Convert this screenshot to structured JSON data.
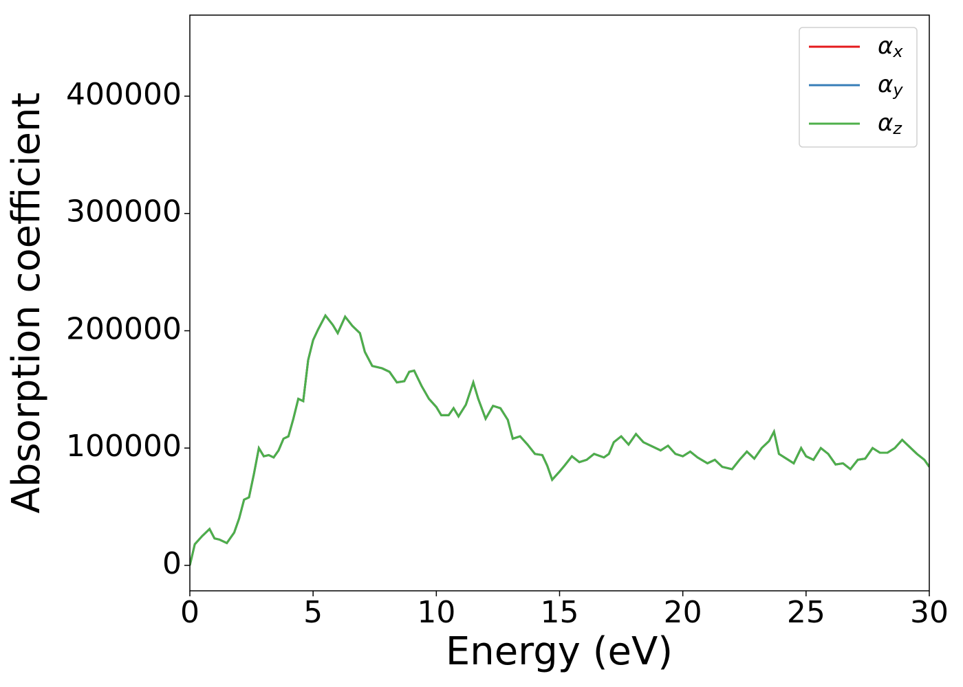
{
  "chart_data": {
    "type": "line",
    "xlabel": "Energy (eV)",
    "ylabel": "Absorption coefficient",
    "x": [
      0,
      0.2,
      0.5,
      0.8,
      1.0,
      1.2,
      1.5,
      1.8,
      2.0,
      2.2,
      2.4,
      2.6,
      2.8,
      3.0,
      3.2,
      3.4,
      3.6,
      3.8,
      4.0,
      4.2,
      4.4,
      4.6,
      4.8,
      5.0,
      5.2,
      5.5,
      5.8,
      6.0,
      6.3,
      6.6,
      6.9,
      7.1,
      7.4,
      7.8,
      8.1,
      8.4,
      8.7,
      8.9,
      9.1,
      9.4,
      9.7,
      10.0,
      10.2,
      10.5,
      10.7,
      10.9,
      11.2,
      11.5,
      11.7,
      12.0,
      12.3,
      12.6,
      12.9,
      13.1,
      13.4,
      13.7,
      14.0,
      14.3,
      14.5,
      14.7,
      15.0,
      15.2,
      15.5,
      15.8,
      16.1,
      16.4,
      16.8,
      17.0,
      17.2,
      17.5,
      17.8,
      18.1,
      18.4,
      18.8,
      19.1,
      19.4,
      19.7,
      20.0,
      20.3,
      20.6,
      21.0,
      21.3,
      21.6,
      22.0,
      22.3,
      22.6,
      22.9,
      23.2,
      23.5,
      23.7,
      23.9,
      24.2,
      24.5,
      24.8,
      25.0,
      25.3,
      25.6,
      25.9,
      26.2,
      26.5,
      26.8,
      27.1,
      27.4,
      27.7,
      28.0,
      28.3,
      28.6,
      28.9,
      29.2,
      29.5,
      29.8,
      30.0
    ],
    "series": [
      {
        "name": "αx",
        "color": "#e41a1c",
        "values": [
          0,
          18000,
          25000,
          31000,
          23000,
          22000,
          19000,
          28000,
          40000,
          56000,
          58000,
          78000,
          100000,
          93000,
          94000,
          92000,
          98000,
          108000,
          110000,
          125000,
          142000,
          140000,
          175000,
          192000,
          201000,
          213000,
          205000,
          198000,
          212000,
          204000,
          198000,
          182000,
          170000,
          168000,
          165000,
          156000,
          157000,
          165000,
          166000,
          153000,
          142000,
          135000,
          128000,
          128000,
          134000,
          127000,
          137000,
          156000,
          142000,
          125000,
          136000,
          134000,
          124000,
          108000,
          110000,
          103000,
          95000,
          94000,
          85000,
          73000,
          80000,
          85000,
          93000,
          88000,
          90000,
          95000,
          92000,
          95000,
          105000,
          110000,
          103000,
          112000,
          105000,
          101000,
          98000,
          102000,
          95000,
          93000,
          97000,
          92000,
          87000,
          90000,
          84000,
          82000,
          90000,
          97000,
          91000,
          100000,
          106000,
          114000,
          95000,
          91000,
          87000,
          100000,
          93000,
          90000,
          100000,
          95000,
          86000,
          87000,
          82000,
          90000,
          91000,
          100000,
          96000,
          96000,
          100000,
          107000,
          101000,
          95000,
          90000,
          84000
        ]
      },
      {
        "name": "αy",
        "color": "#377eb8",
        "values": [
          0,
          18000,
          25000,
          31000,
          23000,
          22000,
          19000,
          28000,
          40000,
          56000,
          58000,
          78000,
          100000,
          93000,
          94000,
          92000,
          98000,
          108000,
          110000,
          125000,
          142000,
          140000,
          175000,
          192000,
          201000,
          213000,
          205000,
          198000,
          212000,
          204000,
          198000,
          182000,
          170000,
          168000,
          165000,
          156000,
          157000,
          165000,
          166000,
          153000,
          142000,
          135000,
          128000,
          128000,
          134000,
          127000,
          137000,
          156000,
          142000,
          125000,
          136000,
          134000,
          124000,
          108000,
          110000,
          103000,
          95000,
          94000,
          85000,
          73000,
          80000,
          85000,
          93000,
          88000,
          90000,
          95000,
          92000,
          95000,
          105000,
          110000,
          103000,
          112000,
          105000,
          101000,
          98000,
          102000,
          95000,
          93000,
          97000,
          92000,
          87000,
          90000,
          84000,
          82000,
          90000,
          97000,
          91000,
          100000,
          106000,
          114000,
          95000,
          91000,
          87000,
          100000,
          93000,
          90000,
          100000,
          95000,
          86000,
          87000,
          82000,
          90000,
          91000,
          100000,
          96000,
          96000,
          100000,
          107000,
          101000,
          95000,
          90000,
          84000
        ]
      },
      {
        "name": "αz",
        "color": "#4daf4a",
        "values": [
          0,
          18000,
          25000,
          31000,
          23000,
          22000,
          19000,
          28000,
          40000,
          56000,
          58000,
          78000,
          100000,
          93000,
          94000,
          92000,
          98000,
          108000,
          110000,
          125000,
          142000,
          140000,
          175000,
          192000,
          201000,
          213000,
          205000,
          198000,
          212000,
          204000,
          198000,
          182000,
          170000,
          168000,
          165000,
          156000,
          157000,
          165000,
          166000,
          153000,
          142000,
          135000,
          128000,
          128000,
          134000,
          127000,
          137000,
          156000,
          142000,
          125000,
          136000,
          134000,
          124000,
          108000,
          110000,
          103000,
          95000,
          94000,
          85000,
          73000,
          80000,
          85000,
          93000,
          88000,
          90000,
          95000,
          92000,
          95000,
          105000,
          110000,
          103000,
          112000,
          105000,
          101000,
          98000,
          102000,
          95000,
          93000,
          97000,
          92000,
          87000,
          90000,
          84000,
          82000,
          90000,
          97000,
          91000,
          100000,
          106000,
          114000,
          95000,
          91000,
          87000,
          100000,
          93000,
          90000,
          100000,
          95000,
          86000,
          87000,
          82000,
          90000,
          91000,
          100000,
          96000,
          96000,
          100000,
          107000,
          101000,
          95000,
          90000,
          84000
        ]
      }
    ],
    "xlim": [
      0,
      30
    ],
    "xticks": [
      0,
      5,
      10,
      15,
      20,
      25,
      30
    ],
    "ylim": [
      -21700,
      469100
    ],
    "yticks": [
      0,
      100000,
      200000,
      300000,
      400000
    ],
    "grid": false,
    "legend": "upper right"
  }
}
